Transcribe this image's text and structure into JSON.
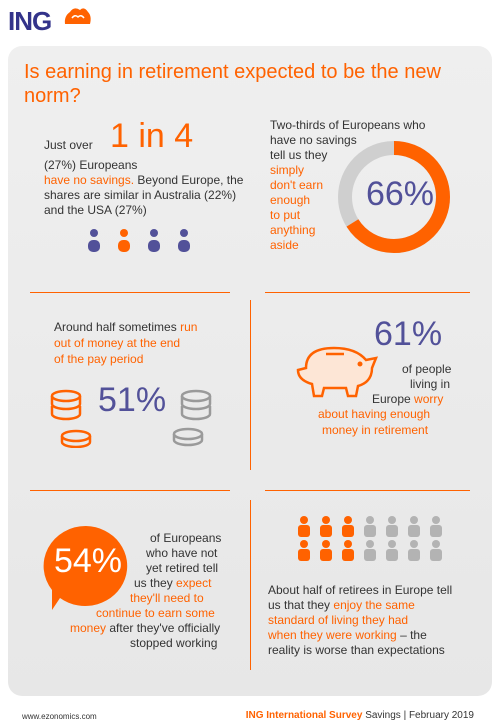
{
  "header": {
    "logo": "ING",
    "lion_icon": "lion-icon"
  },
  "title": "Is earning in retirement expected to be the new norm?",
  "s1": {
    "prefix": "Just over",
    "big": "1 in 4",
    "line2": "(27%) Europeans",
    "highlight": "have no savings.",
    "rest": " Beyond Europe, the shares are similar in Australia (22%) and the USA (27%)",
    "people_icon": "person-icon"
  },
  "s2": {
    "line1": "Two-thirds of Europeans who",
    "line2": "have no savings",
    "line3": "tell us they",
    "hl1": "simply",
    "hl2": "don't earn",
    "hl3": "enough",
    "hl4": "to put",
    "hl5": "anything",
    "hl6": "aside",
    "percent": "66%",
    "value": 66,
    "colors": {
      "fill": "#ff6200",
      "track": "#cfcfcf"
    }
  },
  "s3": {
    "text1": "Around half sometimes",
    "hl1": "run",
    "hl2": "out of money at the end",
    "hl3": "of the pay period",
    "percent": "51%",
    "icon": "coins-icon"
  },
  "s4": {
    "percent": "61%",
    "l1": "of people",
    "l2": "living in",
    "l3": "Europe",
    "hl1": "worry",
    "hl2": "about having enough",
    "hl3": "money in retirement",
    "icon": "piggy-bank-icon"
  },
  "s5": {
    "percent": "54%",
    "l1": "of Europeans",
    "l2": "who have not",
    "l3": "yet  retired tell",
    "l4": "us they",
    "hl1": "expect",
    "hl2": "they'll need to",
    "hl3": "continue to earn some",
    "hl4": "money",
    "l5": "after they've officially",
    "l6": "stopped working"
  },
  "s6": {
    "t1": "About half of retirees in Europe tell",
    "t2": "us that they",
    "hl1": "enjoy the same",
    "hl2": "standard of living they had",
    "hl3": "when they were working",
    "t3": " – the",
    "t4": "reality is worse than expectations",
    "icon": "person-icon"
  },
  "footer": {
    "website": "www.ezonomics.com",
    "survey": "ING International Survey",
    "topic": "Savings",
    "sep": "|",
    "date": "February 2019"
  }
}
